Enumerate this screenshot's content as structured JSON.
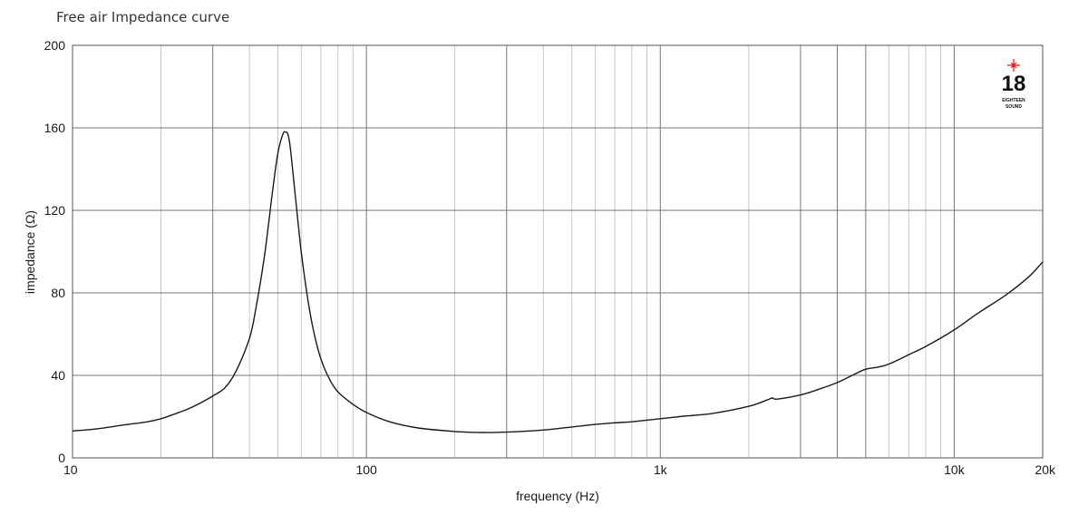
{
  "chart_data": {
    "type": "line",
    "title": "Free air Impedance curve",
    "xlabel": "frequency (Hz)",
    "ylabel": "impedance (Ω)",
    "xscale": "log",
    "xlim": [
      10,
      20000
    ],
    "ylim": [
      0,
      200
    ],
    "grid": true,
    "x_tick_labels": [
      {
        "value": 10,
        "label": "10"
      },
      {
        "value": 100,
        "label": "100"
      },
      {
        "value": 1000,
        "label": "1k"
      },
      {
        "value": 10000,
        "label": "10k"
      },
      {
        "value": 20000,
        "label": "20k"
      }
    ],
    "y_ticks": [
      0,
      40,
      80,
      120,
      160,
      200
    ],
    "line_color": "#1a1a1a",
    "series": [
      {
        "x": [
          10,
          12,
          15,
          18,
          20,
          22,
          25,
          28,
          30,
          33,
          36,
          40,
          42,
          45,
          48,
          50,
          52,
          53,
          54,
          55,
          57,
          60,
          63,
          66,
          70,
          75,
          80,
          90,
          100,
          120,
          150,
          200,
          250,
          300,
          400,
          500,
          600,
          700,
          800,
          1000,
          1200,
          1500,
          2000,
          2300,
          2400,
          2500,
          3000,
          3500,
          4000,
          4500,
          5000,
          5500,
          6000,
          7000,
          8000,
          10000,
          12000,
          15000,
          18000,
          20000
        ],
        "y": [
          13,
          14,
          16,
          17.5,
          19,
          21,
          24,
          27.5,
          30,
          34,
          42,
          58,
          72,
          98,
          130,
          148,
          157,
          158,
          157,
          151,
          130,
          100,
          78,
          62,
          48,
          38,
          32,
          26,
          22,
          17.5,
          14.5,
          12.8,
          12.3,
          12.5,
          13.5,
          15,
          16.2,
          17,
          17.5,
          19,
          20.2,
          21.5,
          25,
          28,
          29,
          28.5,
          30.5,
          33.5,
          36.5,
          40,
          43,
          44,
          45.5,
          50,
          54,
          62,
          70,
          79,
          88,
          95
        ]
      }
    ]
  },
  "logo": {
    "number": "18",
    "sub1": "EIGHTEEN",
    "sub2": "SOUND",
    "star_color": "#e0202a"
  }
}
